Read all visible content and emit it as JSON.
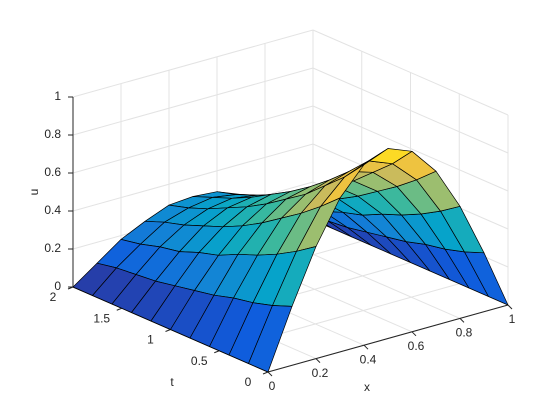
{
  "chart_data": {
    "type": "surface",
    "colormap": "parula",
    "grid": true,
    "xlabel": "x",
    "ylabel": "t",
    "zlabel": "u",
    "x": [
      0,
      0.1,
      0.2,
      0.3,
      0.4,
      0.5,
      0.6,
      0.7,
      0.8,
      0.9,
      1
    ],
    "y": [
      0,
      0.2,
      0.4,
      0.6,
      0.8,
      1,
      1.2,
      1.4,
      1.6,
      1.8,
      2
    ],
    "z": [
      [
        0,
        0.31,
        0.59,
        0.81,
        0.95,
        1,
        0.95,
        0.81,
        0.59,
        0.31,
        0
      ],
      [
        0,
        0.27,
        0.52,
        0.72,
        0.84,
        0.89,
        0.84,
        0.72,
        0.52,
        0.27,
        0
      ],
      [
        0,
        0.24,
        0.46,
        0.64,
        0.75,
        0.79,
        0.75,
        0.64,
        0.46,
        0.24,
        0
      ],
      [
        0,
        0.22,
        0.41,
        0.57,
        0.66,
        0.7,
        0.66,
        0.57,
        0.41,
        0.22,
        0
      ],
      [
        0,
        0.19,
        0.37,
        0.5,
        0.59,
        0.62,
        0.59,
        0.5,
        0.37,
        0.19,
        0
      ],
      [
        0,
        0.17,
        0.32,
        0.44,
        0.52,
        0.55,
        0.52,
        0.44,
        0.32,
        0.17,
        0
      ],
      [
        0,
        0.15,
        0.29,
        0.39,
        0.46,
        0.49,
        0.46,
        0.39,
        0.29,
        0.15,
        0
      ],
      [
        0,
        0.13,
        0.25,
        0.35,
        0.41,
        0.43,
        0.41,
        0.35,
        0.25,
        0.13,
        0
      ],
      [
        0,
        0.12,
        0.23,
        0.31,
        0.36,
        0.38,
        0.36,
        0.31,
        0.23,
        0.12,
        0
      ],
      [
        0,
        0.11,
        0.2,
        0.28,
        0.32,
        0.34,
        0.32,
        0.28,
        0.2,
        0.11,
        0
      ],
      [
        0,
        0.09,
        0.18,
        0.24,
        0.29,
        0.3,
        0.29,
        0.24,
        0.18,
        0.09,
        0
      ]
    ],
    "xlim": [
      0,
      1
    ],
    "xticks": [
      0,
      0.2,
      0.4,
      0.6,
      0.8,
      1
    ],
    "ylim": [
      0,
      2
    ],
    "yticks": [
      0,
      0.5,
      1,
      1.5,
      2
    ],
    "zlim": [
      0,
      1
    ],
    "zticks": [
      0,
      0.2,
      0.4,
      0.6,
      0.8,
      1
    ]
  }
}
